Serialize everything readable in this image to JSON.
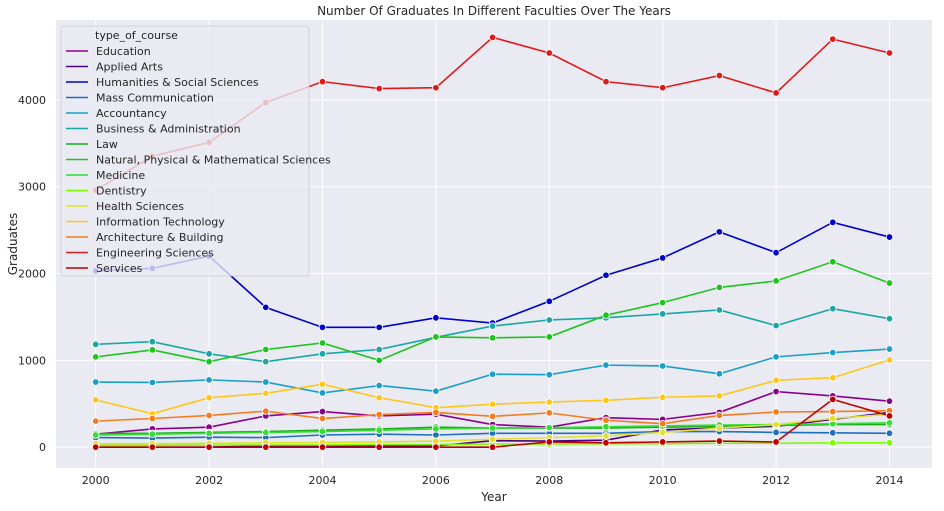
{
  "chart_data": {
    "type": "line",
    "title": "Number Of Graduates In Different Faculties Over The Years",
    "xlabel": "Year",
    "ylabel": "Graduates",
    "xlim": [
      1999.3,
      2014.75
    ],
    "ylim": [
      -240,
      4920
    ],
    "x_ticks": [
      2000,
      2002,
      2004,
      2006,
      2008,
      2010,
      2012,
      2014
    ],
    "y_ticks": [
      0,
      1000,
      2000,
      3000,
      4000
    ],
    "grid": true,
    "legend": {
      "title": "type_of_course",
      "placement": "top-left"
    },
    "colors": {
      "plot_background": "#eaeaf2",
      "grid": "#ffffff"
    },
    "x": [
      2000,
      2001,
      2002,
      2003,
      2004,
      2005,
      2006,
      2007,
      2008,
      2009,
      2010,
      2011,
      2012,
      2013,
      2014
    ],
    "series": [
      {
        "name": "Education",
        "color": "#8b008b",
        "values": [
          150,
          210,
          230,
          360,
          410,
          360,
          380,
          260,
          230,
          340,
          320,
          400,
          640,
          590,
          530
        ]
      },
      {
        "name": "Applied Arts",
        "color": "#4b0082",
        "values": [
          0,
          0,
          0,
          15,
          15,
          15,
          15,
          75,
          70,
          80,
          200,
          220,
          240,
          320,
          400
        ]
      },
      {
        "name": "Humanities & Social Sciences",
        "color": "#0000cd",
        "values": [
          2030,
          2060,
          2200,
          1610,
          1380,
          1380,
          1490,
          1430,
          1680,
          1980,
          2180,
          2480,
          2240,
          2590,
          2420
        ]
      },
      {
        "name": "Mass Communication",
        "color": "#1e6fbf",
        "values": [
          110,
          105,
          115,
          110,
          140,
          150,
          140,
          160,
          160,
          160,
          180,
          180,
          170,
          165,
          160
        ]
      },
      {
        "name": "Accountancy",
        "color": "#1a9fcb",
        "values": [
          750,
          745,
          775,
          750,
          625,
          710,
          645,
          840,
          835,
          945,
          935,
          845,
          1040,
          1090,
          1130
        ]
      },
      {
        "name": "Business & Administration",
        "color": "#1aa6a6",
        "values": [
          1185,
          1215,
          1075,
          985,
          1075,
          1125,
          1265,
          1395,
          1465,
          1490,
          1535,
          1580,
          1400,
          1595,
          1480
        ]
      },
      {
        "name": "Law",
        "color": "#1aad1a",
        "values": [
          155,
          160,
          170,
          180,
          195,
          210,
          230,
          220,
          220,
          220,
          230,
          240,
          250,
          260,
          260
        ]
      },
      {
        "name": "Natural, Physical & Mathematical Sciences",
        "color": "#1ec41e",
        "values": [
          1040,
          1120,
          985,
          1125,
          1200,
          1000,
          1270,
          1260,
          1270,
          1520,
          1665,
          1840,
          1915,
          2135,
          1890
        ]
      },
      {
        "name": "Medicine",
        "color": "#33dd33",
        "values": [
          140,
          150,
          160,
          170,
          180,
          195,
          210,
          220,
          225,
          235,
          245,
          255,
          260,
          270,
          280
        ]
      },
      {
        "name": "Dentistry",
        "color": "#7cfc00",
        "values": [
          20,
          20,
          25,
          25,
          25,
          30,
          30,
          35,
          35,
          40,
          40,
          45,
          45,
          50,
          50
        ]
      },
      {
        "name": "Health Sciences",
        "color": "#e0e030",
        "values": [
          40,
          40,
          45,
          50,
          55,
          60,
          70,
          90,
          110,
          130,
          170,
          220,
          260,
          330,
          380
        ]
      },
      {
        "name": "Information Technology",
        "color": "#ffc61a",
        "values": [
          545,
          385,
          570,
          620,
          725,
          570,
          455,
          495,
          520,
          540,
          575,
          590,
          770,
          800,
          1005
        ]
      },
      {
        "name": "Architecture & Building",
        "color": "#f57c1e",
        "values": [
          300,
          330,
          365,
          415,
          330,
          375,
          400,
          355,
          395,
          310,
          270,
          365,
          405,
          410,
          420
        ]
      },
      {
        "name": "Engineering Sciences",
        "color": "#e01a1a",
        "values": [
          2960,
          3350,
          3510,
          3970,
          4210,
          4130,
          4140,
          4720,
          4540,
          4210,
          4140,
          4280,
          4080,
          4700,
          4540
        ]
      },
      {
        "name": "Services",
        "color": "#c00000",
        "values": [
          0,
          0,
          0,
          0,
          0,
          0,
          0,
          0,
          60,
          50,
          60,
          70,
          60,
          550,
          360
        ]
      }
    ]
  }
}
